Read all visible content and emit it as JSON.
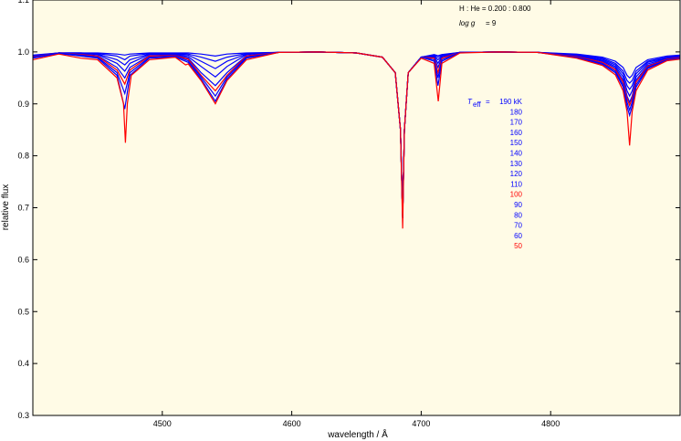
{
  "chart_data": {
    "type": "line",
    "xlabel": "wavelength / Å",
    "ylabel": "relative flux",
    "xlim": [
      4400,
      4900
    ],
    "ylim": [
      0.3,
      1.1
    ],
    "x_ticks": [
      4500,
      4600,
      4700,
      4800
    ],
    "y_ticks": [
      0.3,
      0.4,
      0.5,
      0.6,
      0.7,
      0.8,
      0.9,
      1.0,
      1.1
    ],
    "grid": false,
    "background_color": "#fffbe6",
    "annotations": {
      "composition": "H : He = 0.200 : 0.800",
      "logg_label": "log g",
      "logg_value": "= 9"
    },
    "legend": {
      "title": "T",
      "title_sub": "eff",
      "title_eq": "=",
      "placement": "right-center",
      "entries": [
        {
          "label": "190 kK",
          "color": "#0000ff"
        },
        {
          "label": "180",
          "color": "#0000ff"
        },
        {
          "label": "170",
          "color": "#0000ff"
        },
        {
          "label": "160",
          "color": "#0000ff"
        },
        {
          "label": "150",
          "color": "#0000ff"
        },
        {
          "label": "140",
          "color": "#0000ff"
        },
        {
          "label": "130",
          "color": "#0000ff"
        },
        {
          "label": "120",
          "color": "#0000ff"
        },
        {
          "label": "110",
          "color": "#0000ff"
        },
        {
          "label": "100",
          "color": "#ff0000"
        },
        {
          "label": "90",
          "color": "#0000ff"
        },
        {
          "label": "80",
          "color": "#0000ff"
        },
        {
          "label": "70",
          "color": "#0000ff"
        },
        {
          "label": "60",
          "color": "#0000ff"
        },
        {
          "label": "50",
          "color": "#ff0000"
        }
      ]
    },
    "series": [
      {
        "temperature_kK": 190,
        "color": "#0000ff",
        "x": [
          4400,
          4420,
          4437,
          4450,
          4465,
          4471,
          4475,
          4490,
          4510,
          4520,
          4530,
          4541,
          4550,
          4565,
          4590,
          4620,
          4650,
          4670,
          4680,
          4684,
          4685.7,
          4687,
          4690,
          4700,
          4710,
          4713,
          4716,
          4730,
          4760,
          4790,
          4820,
          4840,
          4850,
          4856,
          4859,
          4861,
          4863,
          4866,
          4875,
          4890,
          4900
        ],
        "y": [
          0.994,
          0.998,
          0.998,
          0.998,
          0.996,
          0.994,
          0.996,
          0.998,
          0.998,
          0.998,
          0.996,
          0.992,
          0.996,
          0.998,
          0.999,
          1.0,
          0.998,
          0.99,
          0.96,
          0.85,
          0.68,
          0.85,
          0.96,
          0.99,
          0.995,
          0.993,
          0.995,
          0.999,
          1.0,
          0.999,
          0.996,
          0.99,
          0.982,
          0.97,
          0.955,
          0.95,
          0.955,
          0.97,
          0.985,
          0.992,
          0.994
        ]
      },
      {
        "temperature_kK": 170,
        "color": "#0000ff",
        "x": [
          4400,
          4420,
          4437,
          4450,
          4465,
          4471,
          4475,
          4490,
          4510,
          4520,
          4530,
          4541,
          4550,
          4565,
          4590,
          4620,
          4650,
          4670,
          4680,
          4684,
          4685.7,
          4687,
          4690,
          4700,
          4710,
          4713,
          4716,
          4730,
          4760,
          4790,
          4820,
          4840,
          4850,
          4856,
          4859,
          4861,
          4863,
          4866,
          4875,
          4890,
          4900
        ],
        "y": [
          0.993,
          0.998,
          0.998,
          0.997,
          0.992,
          0.985,
          0.992,
          0.997,
          0.997,
          0.996,
          0.99,
          0.982,
          0.99,
          0.997,
          0.999,
          1.0,
          0.998,
          0.99,
          0.96,
          0.85,
          0.68,
          0.85,
          0.96,
          0.99,
          0.994,
          0.99,
          0.994,
          0.999,
          1.0,
          0.999,
          0.995,
          0.988,
          0.978,
          0.963,
          0.945,
          0.94,
          0.945,
          0.963,
          0.982,
          0.99,
          0.993
        ]
      },
      {
        "temperature_kK": 150,
        "color": "#0000ff",
        "x": [
          4400,
          4420,
          4437,
          4450,
          4465,
          4471,
          4475,
          4490,
          4510,
          4520,
          4530,
          4541,
          4550,
          4565,
          4590,
          4620,
          4650,
          4670,
          4680,
          4684,
          4685.7,
          4687,
          4690,
          4700,
          4710,
          4713,
          4716,
          4730,
          4760,
          4790,
          4820,
          4840,
          4850,
          4856,
          4859,
          4861,
          4863,
          4866,
          4875,
          4890,
          4900
        ],
        "y": [
          0.992,
          0.998,
          0.998,
          0.996,
          0.985,
          0.975,
          0.985,
          0.996,
          0.996,
          0.994,
          0.982,
          0.968,
          0.982,
          0.996,
          0.999,
          1.0,
          0.998,
          0.99,
          0.96,
          0.85,
          0.68,
          0.85,
          0.96,
          0.99,
          0.993,
          0.985,
          0.993,
          0.999,
          1.0,
          0.999,
          0.994,
          0.986,
          0.975,
          0.958,
          0.935,
          0.928,
          0.935,
          0.958,
          0.98,
          0.989,
          0.992
        ]
      },
      {
        "temperature_kK": 130,
        "color": "#0000ff",
        "x": [
          4400,
          4420,
          4437,
          4450,
          4465,
          4471,
          4475,
          4490,
          4510,
          4520,
          4530,
          4541,
          4550,
          4565,
          4590,
          4620,
          4650,
          4670,
          4680,
          4684,
          4685.7,
          4687,
          4690,
          4700,
          4710,
          4713,
          4716,
          4730,
          4760,
          4790,
          4820,
          4840,
          4850,
          4856,
          4859,
          4861,
          4863,
          4866,
          4875,
          4890,
          4900
        ],
        "y": [
          0.991,
          0.998,
          0.997,
          0.995,
          0.978,
          0.963,
          0.978,
          0.995,
          0.995,
          0.991,
          0.972,
          0.952,
          0.972,
          0.995,
          0.999,
          1.0,
          0.998,
          0.99,
          0.96,
          0.85,
          0.68,
          0.85,
          0.96,
          0.99,
          0.992,
          0.978,
          0.992,
          0.999,
          1.0,
          0.999,
          0.993,
          0.984,
          0.972,
          0.952,
          0.925,
          0.915,
          0.925,
          0.952,
          0.977,
          0.988,
          0.991
        ]
      },
      {
        "temperature_kK": 110,
        "color": "#0000ff",
        "x": [
          4400,
          4420,
          4437,
          4450,
          4465,
          4471,
          4475,
          4490,
          4510,
          4520,
          4530,
          4541,
          4550,
          4565,
          4590,
          4620,
          4650,
          4670,
          4680,
          4684,
          4685.7,
          4687,
          4690,
          4700,
          4710,
          4713,
          4716,
          4730,
          4760,
          4790,
          4820,
          4840,
          4850,
          4856,
          4859,
          4861,
          4863,
          4866,
          4875,
          4890,
          4900
        ],
        "y": [
          0.99,
          0.998,
          0.996,
          0.993,
          0.97,
          0.95,
          0.97,
          0.993,
          0.994,
          0.988,
          0.96,
          0.935,
          0.96,
          0.993,
          0.999,
          1.0,
          0.998,
          0.99,
          0.96,
          0.85,
          0.68,
          0.85,
          0.96,
          0.99,
          0.99,
          0.97,
          0.99,
          0.999,
          1.0,
          0.999,
          0.992,
          0.982,
          0.969,
          0.946,
          0.915,
          0.903,
          0.915,
          0.946,
          0.974,
          0.987,
          0.99
        ]
      },
      {
        "temperature_kK": 100,
        "color": "#ff0000",
        "x": [
          4400,
          4420,
          4437,
          4450,
          4465,
          4471,
          4475,
          4490,
          4510,
          4520,
          4530,
          4541,
          4550,
          4565,
          4590,
          4620,
          4650,
          4670,
          4680,
          4684,
          4685.7,
          4687,
          4690,
          4700,
          4710,
          4713,
          4716,
          4730,
          4760,
          4790,
          4820,
          4840,
          4850,
          4856,
          4859,
          4861,
          4863,
          4866,
          4875,
          4890,
          4900
        ],
        "y": [
          0.99,
          0.998,
          0.995,
          0.992,
          0.965,
          0.938,
          0.965,
          0.992,
          0.993,
          0.986,
          0.955,
          0.925,
          0.955,
          0.992,
          0.999,
          1.0,
          0.998,
          0.99,
          0.96,
          0.85,
          0.68,
          0.85,
          0.96,
          0.99,
          0.988,
          0.96,
          0.988,
          0.999,
          1.0,
          0.999,
          0.991,
          0.98,
          0.966,
          0.942,
          0.91,
          0.897,
          0.91,
          0.942,
          0.972,
          0.986,
          0.989
        ]
      },
      {
        "temperature_kK": 80,
        "color": "#0000ff",
        "x": [
          4400,
          4420,
          4437,
          4450,
          4465,
          4471,
          4475,
          4490,
          4510,
          4520,
          4530,
          4541,
          4550,
          4565,
          4590,
          4620,
          4650,
          4670,
          4680,
          4684,
          4685.7,
          4687,
          4690,
          4700,
          4710,
          4713,
          4716,
          4730,
          4760,
          4790,
          4820,
          4840,
          4850,
          4856,
          4859,
          4861,
          4863,
          4866,
          4875,
          4890,
          4900
        ],
        "y": [
          0.989,
          0.998,
          0.994,
          0.99,
          0.96,
          0.92,
          0.96,
          0.99,
          0.992,
          0.983,
          0.952,
          0.915,
          0.952,
          0.99,
          0.999,
          1.0,
          0.998,
          0.99,
          0.96,
          0.85,
          0.68,
          0.85,
          0.96,
          0.99,
          0.985,
          0.95,
          0.985,
          0.999,
          1.0,
          0.999,
          0.99,
          0.978,
          0.963,
          0.937,
          0.903,
          0.888,
          0.903,
          0.937,
          0.97,
          0.985,
          0.988
        ]
      },
      {
        "temperature_kK": 60,
        "color": "#0000ff",
        "x": [
          4400,
          4420,
          4437,
          4450,
          4465,
          4471,
          4475,
          4490,
          4510,
          4520,
          4530,
          4541,
          4550,
          4565,
          4590,
          4620,
          4650,
          4670,
          4680,
          4684,
          4685.7,
          4687,
          4690,
          4700,
          4710,
          4713,
          4716,
          4730,
          4760,
          4790,
          4820,
          4840,
          4850,
          4856,
          4859,
          4861,
          4863,
          4866,
          4875,
          4890,
          4900
        ],
        "y": [
          0.988,
          0.997,
          0.992,
          0.988,
          0.955,
          0.89,
          0.955,
          0.988,
          0.99,
          0.98,
          0.948,
          0.905,
          0.948,
          0.988,
          0.999,
          1.0,
          0.998,
          0.99,
          0.96,
          0.85,
          0.68,
          0.85,
          0.96,
          0.99,
          0.982,
          0.935,
          0.982,
          0.999,
          1.0,
          0.999,
          0.989,
          0.976,
          0.96,
          0.932,
          0.895,
          0.878,
          0.895,
          0.932,
          0.968,
          0.984,
          0.987
        ]
      },
      {
        "temperature_kK": 50,
        "color": "#ff0000",
        "x": [
          4400,
          4420,
          4437,
          4450,
          4465,
          4470,
          4471.5,
          4473,
          4476,
          4490,
          4510,
          4518,
          4520,
          4530,
          4541,
          4550,
          4565,
          4590,
          4620,
          4650,
          4670,
          4680,
          4684,
          4685.7,
          4687,
          4690,
          4700,
          4710,
          4713.2,
          4716,
          4730,
          4760,
          4790,
          4820,
          4840,
          4850,
          4856,
          4859,
          4861,
          4863,
          4866,
          4875,
          4890,
          4900
        ],
        "y": [
          0.985,
          0.996,
          0.988,
          0.985,
          0.95,
          0.9,
          0.825,
          0.9,
          0.955,
          0.985,
          0.99,
          0.975,
          0.977,
          0.945,
          0.9,
          0.945,
          0.985,
          0.999,
          1.0,
          0.998,
          0.99,
          0.96,
          0.85,
          0.66,
          0.85,
          0.96,
          0.988,
          0.978,
          0.905,
          0.978,
          0.998,
          1.0,
          0.999,
          0.988,
          0.974,
          0.956,
          0.925,
          0.885,
          0.82,
          0.885,
          0.925,
          0.965,
          0.983,
          0.986
        ]
      }
    ]
  }
}
